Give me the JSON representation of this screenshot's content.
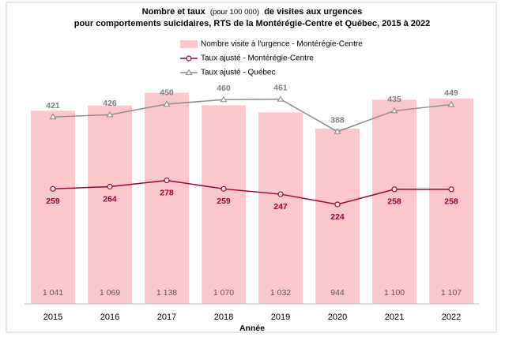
{
  "chart_data": {
    "type": "bar",
    "title": [
      "Nombre et taux",
      "(pour 100 000)",
      "de visites aux urgences",
      "pour comportements suicidaires, RTS de la Montérégie-Centre et Québec, 2015 à 2022"
    ],
    "xlabel": "Année",
    "categories": [
      "2015",
      "2016",
      "2017",
      "2018",
      "2019",
      "2020",
      "2021",
      "2022"
    ],
    "ylim": [
      0,
      1340
    ],
    "y2lim": [
      0,
      560
    ],
    "series": [
      {
        "name": "Nombre visite à l'urgence - Montérégie-Centre",
        "type": "bar",
        "color": "#fcc6cd",
        "values": [
          1041,
          1069,
          1138,
          1070,
          1032,
          944,
          1100,
          1107
        ],
        "value_labels": [
          "1 041",
          "1 069",
          "1 138",
          "1 070",
          "1 032",
          "944",
          "1 100",
          "1 107"
        ]
      },
      {
        "name": "Taux ajusté - Montérégie-Centre",
        "type": "line",
        "axis": "y2",
        "color": "#a50021",
        "marker": "circle",
        "values": [
          259,
          264,
          278,
          259,
          247,
          224,
          258,
          258
        ]
      },
      {
        "name": "Taux ajusté - Québec",
        "type": "line",
        "axis": "y2",
        "color": "#8c8c8c",
        "marker": "triangle",
        "values": [
          421,
          426,
          450,
          460,
          461,
          388,
          435,
          449
        ]
      }
    ]
  }
}
